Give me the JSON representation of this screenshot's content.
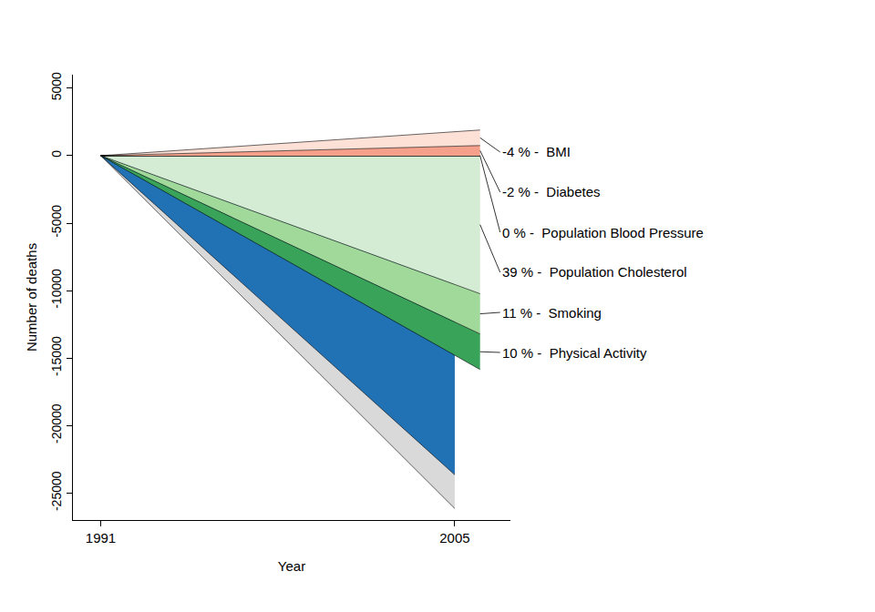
{
  "chart_data": {
    "type": "area",
    "x_label": "Year",
    "y_label": "Number of deaths",
    "xlim": [
      1989.9,
      2007.2
    ],
    "xticks": [
      1991,
      2005
    ],
    "ylim": [
      -27000,
      6000
    ],
    "yticks": [
      -25000,
      -20000,
      -15000,
      -10000,
      -5000,
      0,
      5000
    ],
    "grid": false,
    "series": [
      {
        "type": "area",
        "color": "#d9d9d9",
        "x": [
          1991,
          2005
        ],
        "values": [
          0,
          -26150
        ]
      },
      {
        "type": "area",
        "color": "#2171b5",
        "x": [
          1991,
          2005
        ],
        "values": [
          0,
          -23650
        ]
      },
      {
        "type": "stacked_area",
        "name": "-4 % -  BMI",
        "color": "#fde0d6",
        "x": [
          1991,
          2006
        ],
        "values": [
          0,
          1150
        ]
      },
      {
        "type": "stacked_area",
        "name": "-2 % -  Diabetes",
        "color": "#f4a08a",
        "x": [
          1991,
          2006
        ],
        "values": [
          0,
          750
        ]
      },
      {
        "type": "stacked_area",
        "name": "0 % -  Population Blood Pressure",
        "color": "#000000",
        "x": [
          1991,
          2006
        ],
        "values": [
          0,
          0
        ]
      },
      {
        "type": "stacked_area",
        "name": "39 % -  Population Cholesterol",
        "color": "#d5ecd4",
        "x": [
          1991,
          2006
        ],
        "values": [
          0,
          -10230
        ]
      },
      {
        "type": "stacked_area",
        "name": "11 % -  Smoking",
        "color": "#a1d99b",
        "x": [
          1991,
          2006
        ],
        "values": [
          0,
          -2980
        ]
      },
      {
        "type": "stacked_area",
        "name": "10 % -  Physical Activity",
        "color": "#3aa35a",
        "x": [
          1991,
          2006
        ],
        "values": [
          0,
          -2640
        ]
      }
    ]
  }
}
